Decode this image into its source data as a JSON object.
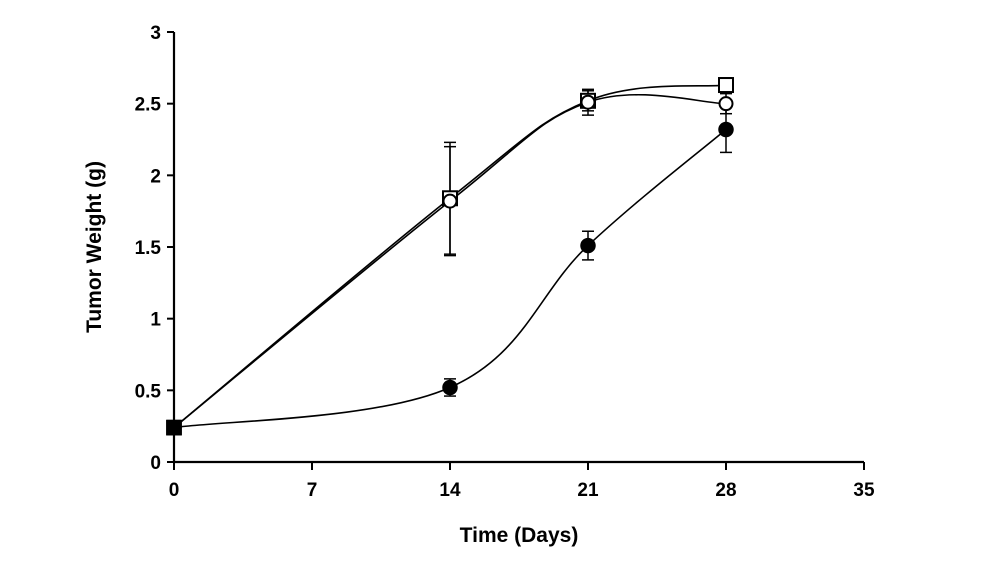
{
  "chart_data": {
    "type": "line",
    "xlabel": "Time (Days)",
    "ylabel": "Tumor Weight (g)",
    "xlim": [
      0,
      35
    ],
    "ylim": [
      0,
      3
    ],
    "xticks": [
      0,
      7,
      14,
      21,
      28,
      35
    ],
    "yticks": [
      0,
      0.5,
      1,
      1.5,
      2,
      2.5,
      3
    ],
    "x_tick_labels": [
      "0",
      "7",
      "14",
      "21",
      "28",
      "35"
    ],
    "y_tick_labels": [
      "0",
      "0.5",
      "1",
      "1.5",
      "2",
      "2.5",
      "3"
    ],
    "grid": false,
    "legend": "none",
    "series": [
      {
        "marker": "open-square",
        "points": [
          {
            "x": 0,
            "y": 0.24,
            "err": 0.02
          },
          {
            "x": 14,
            "y": 1.84,
            "err": 0.39
          },
          {
            "x": 21,
            "y": 2.52,
            "err": 0.07
          },
          {
            "x": 28,
            "y": 2.63,
            "err": 0.05
          }
        ]
      },
      {
        "marker": "open-circle",
        "points": [
          {
            "x": 0,
            "y": 0.24,
            "err": 0.02
          },
          {
            "x": 14,
            "y": 1.82,
            "err": 0.38
          },
          {
            "x": 21,
            "y": 2.51,
            "err": 0.09
          },
          {
            "x": 28,
            "y": 2.5,
            "err": 0.07
          }
        ]
      },
      {
        "marker": "filled-circle",
        "points": [
          {
            "x": 0,
            "y": 0.24,
            "err": 0.02
          },
          {
            "x": 14,
            "y": 0.52,
            "err": 0.06
          },
          {
            "x": 21,
            "y": 1.51,
            "err": 0.1
          },
          {
            "x": 28,
            "y": 2.32,
            "err": 0.16
          }
        ]
      }
    ]
  }
}
